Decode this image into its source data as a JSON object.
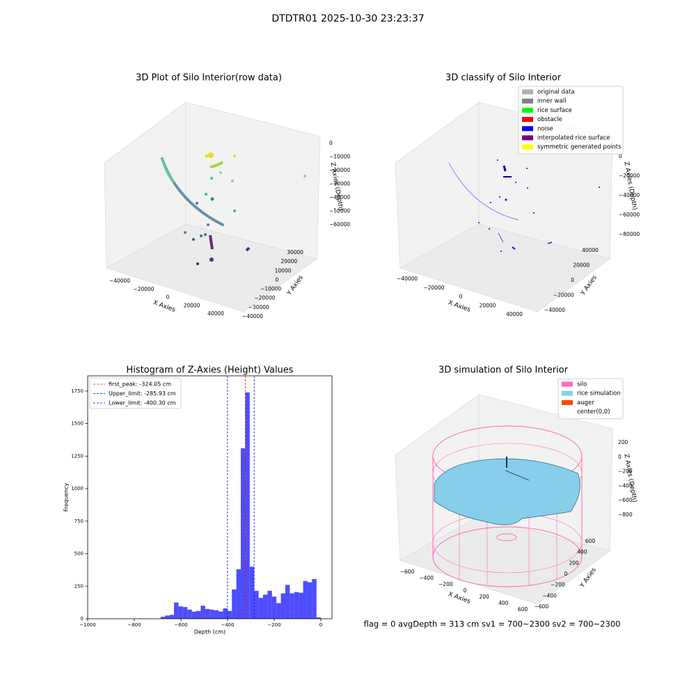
{
  "title": "DTDTR01 2025-10-30 23:23:37",
  "status": "flag = 0     avgDepth = 313 cm  sv1 = 700~2300  sv2 = 700~2300",
  "chart_data": [
    {
      "type": "scatter3d",
      "title": "3D Plot of Silo Interior(row data)",
      "xlabel": "X Axies",
      "ylabel": "Y Axies",
      "zlabel": "Z Axies (Depth)",
      "xticks": [
        {
          "value": -40000,
          "label": "−40000"
        },
        {
          "value": -20000,
          "label": "−20000"
        },
        0,
        20000,
        40000
      ],
      "yticks": [
        {
          "value": -40000,
          "label": "−40000"
        },
        {
          "value": -30000,
          "label": "−30000"
        },
        {
          "value": -20000,
          "label": "−20000"
        },
        {
          "value": -10000,
          "label": "−10000"
        },
        0,
        10000,
        20000,
        30000
      ],
      "zticks": [
        0,
        {
          "value": -10000,
          "label": "−10000"
        },
        {
          "value": -20000,
          "label": "−20000"
        },
        {
          "value": -30000,
          "label": "−30000"
        },
        {
          "value": -40000,
          "label": "−40000"
        },
        {
          "value": -50000,
          "label": "−50000"
        },
        {
          "value": -60000,
          "label": "−60000"
        }
      ]
    },
    {
      "type": "scatter3d",
      "title": "3D classify of Silo Interior",
      "xlabel": "X Axies",
      "ylabel": "Y Axies",
      "zlabel": "Z Axies (Depth)",
      "xticks": [
        {
          "value": -40000,
          "label": "−40000"
        },
        {
          "value": -20000,
          "label": "−20000"
        },
        0,
        20000,
        40000
      ],
      "yticks": [
        {
          "value": -40000,
          "label": "−40000"
        },
        {
          "value": -20000,
          "label": "−20000"
        },
        0,
        20000,
        40000
      ],
      "zticks": [
        0,
        {
          "value": -20000,
          "label": "−20000"
        },
        {
          "value": -40000,
          "label": "−40000"
        },
        {
          "value": -60000,
          "label": "−60000"
        },
        {
          "value": -80000,
          "label": "−80000"
        }
      ],
      "legend": "upper right",
      "series": [
        {
          "name": "original data",
          "color": "#b0b0b0"
        },
        {
          "name": "inner wall",
          "color": "#808080"
        },
        {
          "name": "rice surface",
          "color": "#00ff00"
        },
        {
          "name": "obstacle",
          "color": "#ff0000"
        },
        {
          "name": "noise",
          "color": "#0000ff"
        },
        {
          "name": "interpolated rice surface",
          "color": "#800080"
        },
        {
          "name": "symmetric generated points",
          "color": "#ffff00"
        }
      ]
    },
    {
      "type": "histogram",
      "title": "Histogram of Z-Axies (Height) Values",
      "xlabel": "Depth (cm)",
      "ylabel": "Frequency",
      "color": "#4d4dff",
      "bins": [
        -687,
        -667.9,
        -648.8,
        -629.7,
        -610.6,
        -591.5,
        -572.4,
        -553.3,
        -534.2,
        -515.1,
        -496,
        -476.9,
        -457.8,
        -438.7,
        -419.6,
        -400.5,
        -381.4,
        -362.3,
        -343.2,
        -324.1,
        -305,
        -285.9,
        -266.8,
        -247.7,
        -228.6,
        -209.5,
        -190.4,
        -171.3,
        -152.2,
        -133.1,
        -114,
        -94.9,
        -75.8,
        -56.7,
        -37.6,
        -18.5,
        0.6
      ],
      "values": [
        15,
        25,
        30,
        125,
        95,
        90,
        70,
        55,
        60,
        100,
        75,
        70,
        65,
        55,
        80,
        60,
        225,
        380,
        1310,
        1740,
        400,
        215,
        160,
        185,
        215,
        170,
        120,
        195,
        260,
        195,
        205,
        200,
        290,
        280,
        305,
        10
      ],
      "xlim": [
        -1000,
        48
      ],
      "ylim": [
        0,
        1867
      ],
      "xticks": [
        {
          "value": -1000,
          "label": "−1000"
        },
        {
          "value": -800,
          "label": "−800"
        },
        {
          "value": -600,
          "label": "−600"
        },
        {
          "value": -400,
          "label": "−400"
        },
        {
          "value": -200,
          "label": "−200"
        },
        0
      ],
      "yticks": [
        0,
        250,
        500,
        750,
        1000,
        1250,
        1500,
        1750
      ],
      "legend": "upper left",
      "lines": [
        {
          "label": "first_peak: -324.05 cm",
          "value": -324.05,
          "color": "#ff0000"
        },
        {
          "label": "Upper_limit: -285.93 cm",
          "value": -285.93,
          "color": "#0000ff"
        },
        {
          "label": "Lower_limit: -400.30 cm",
          "value": -400.3,
          "color": "#0000ff"
        }
      ]
    },
    {
      "type": "surface3d",
      "title": "3D simulation of Silo Interior",
      "xlabel": "X Axies",
      "ylabel": "Y Axies",
      "zlabel": "Z Axies (Depth)",
      "xticks": [
        {
          "value": -600,
          "label": "−600"
        },
        {
          "value": -400,
          "label": "−400"
        },
        {
          "value": -200,
          "label": "−200"
        },
        0,
        200,
        400,
        600
      ],
      "yticks": [
        {
          "value": -600,
          "label": "−600"
        },
        {
          "value": -400,
          "label": "−400"
        },
        {
          "value": -200,
          "label": "−200"
        },
        0,
        200,
        400,
        600
      ],
      "zticks": [
        200,
        0,
        {
          "value": -200,
          "label": "−200"
        },
        {
          "value": -400,
          "label": "−400"
        },
        {
          "value": -600,
          "label": "−600"
        },
        {
          "value": -800,
          "label": "−800"
        }
      ],
      "legend": "upper right",
      "series": [
        {
          "name": "silo",
          "color": "#ff69b4"
        },
        {
          "name": "rice simulation",
          "color": "#87ceeb"
        },
        {
          "name": "auger",
          "color": "#ff4500"
        },
        {
          "name": "center(0,0)",
          "color": "#ffffff"
        }
      ]
    }
  ]
}
